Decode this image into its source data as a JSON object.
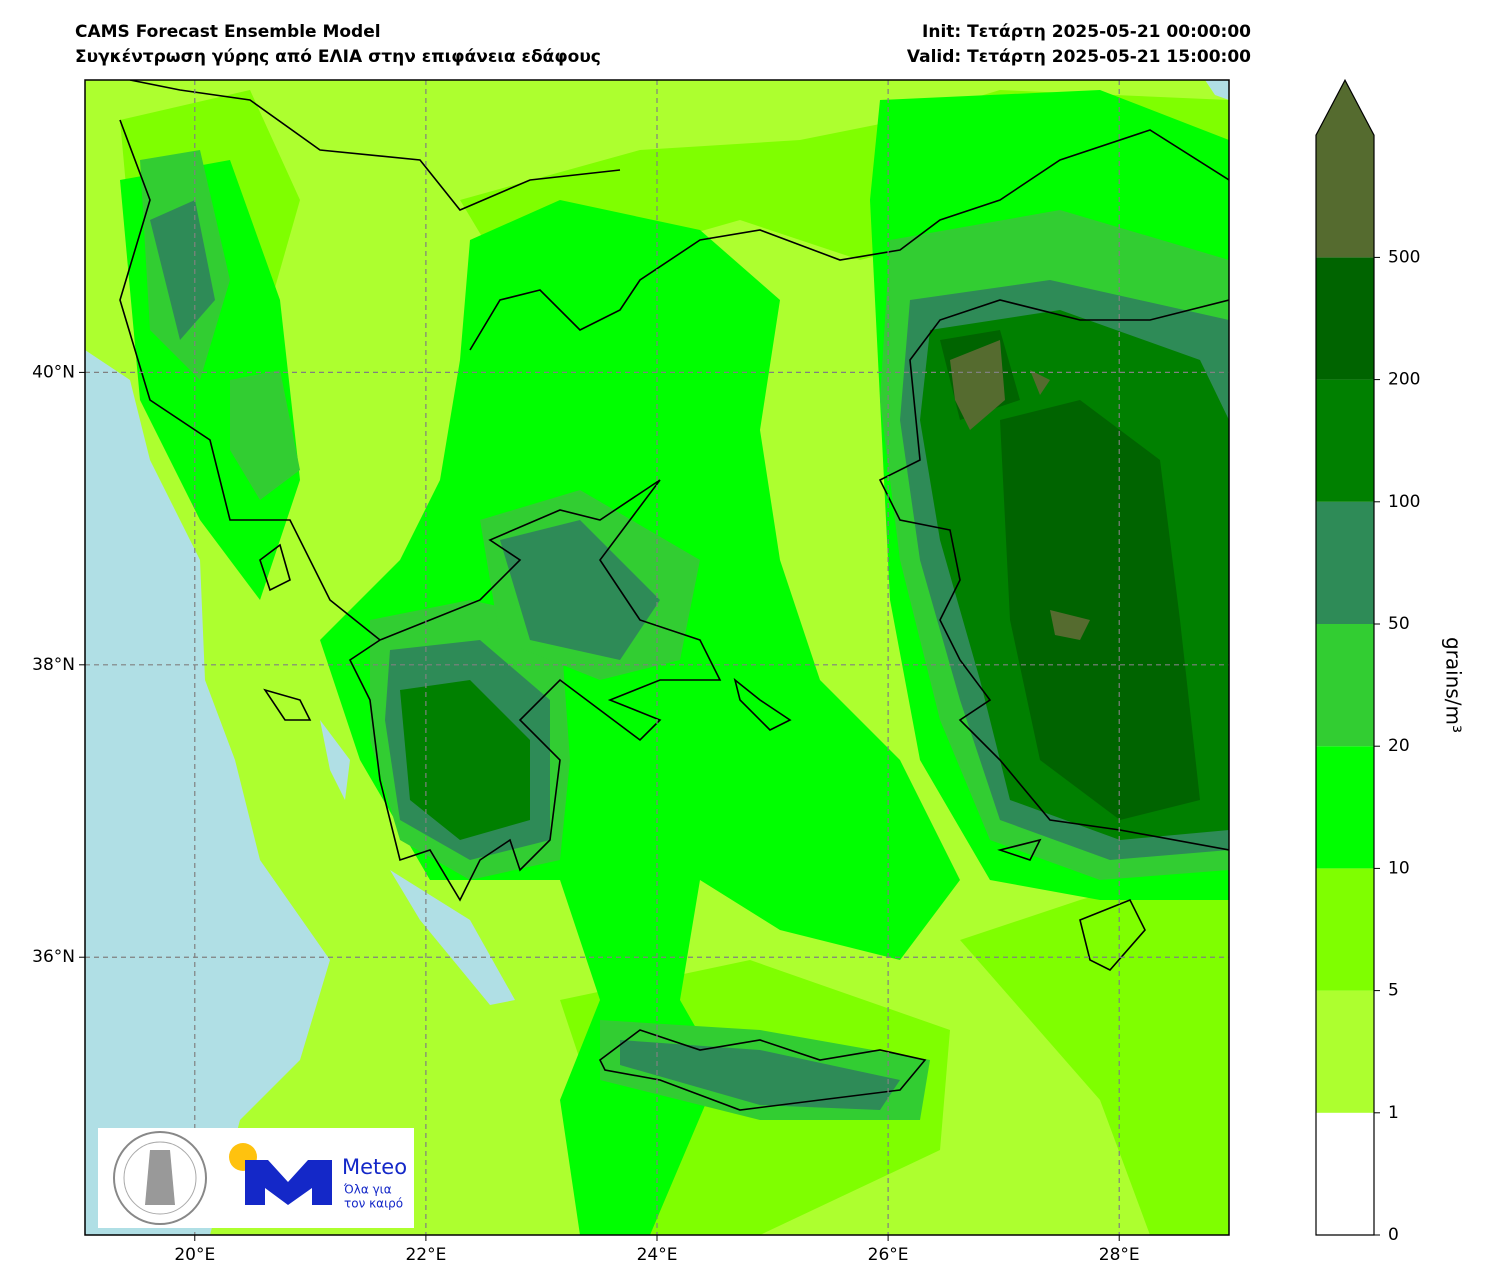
{
  "header": {
    "title": "CAMS Forecast Ensemble Model",
    "subtitle": "Συγκέντρωση γύρης από ΕΛΙΑ στην επιφάνεια εδάφους",
    "init": "Init: Τετάρτη 2025-05-21 00:00:00",
    "valid": "Valid: Τετάρτη 2025-05-21 15:00:00"
  },
  "chart_data": {
    "type": "map",
    "xlim": [
      19.05,
      28.95
    ],
    "ylim": [
      34.1,
      42.0
    ],
    "xticks": [
      {
        "value": 20,
        "label": "20°E"
      },
      {
        "value": 22,
        "label": "22°E"
      },
      {
        "value": 24,
        "label": "24°E"
      },
      {
        "value": 26,
        "label": "26°E"
      },
      {
        "value": 28,
        "label": "28°E"
      }
    ],
    "yticks": [
      {
        "value": 36,
        "label": "36°N"
      },
      {
        "value": 38,
        "label": "38°N"
      },
      {
        "value": 40,
        "label": "40°N"
      }
    ],
    "grid": true,
    "colorbar": {
      "label": "grains/m³",
      "levels": [
        0,
        1,
        5,
        10,
        20,
        50,
        100,
        200,
        500
      ],
      "colors": [
        "#ffffff",
        "#adff2f",
        "#7fff00",
        "#00ff00",
        "#32cd32",
        "#2e8b57",
        "#008000",
        "#006400"
      ],
      "extend_color": "#556b2f"
    }
  },
  "logo": {
    "name": "Meteo",
    "tagline": [
      "Όλα για",
      "τον καιρό"
    ]
  }
}
